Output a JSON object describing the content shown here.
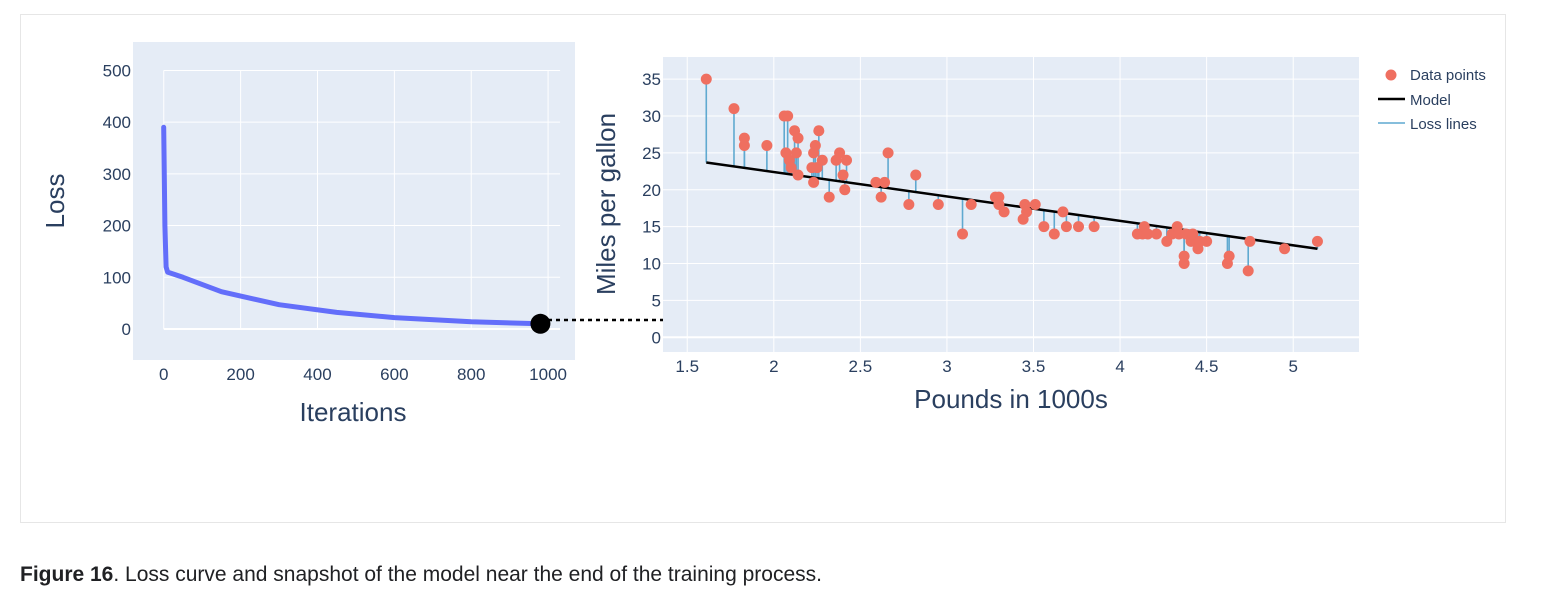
{
  "caption": {
    "label": "Figure 16",
    "text": ". Loss curve and snapshot of the model near the end of the training process."
  },
  "colors": {
    "plot_bg": "#e5ecf6",
    "grid": "#ffffff",
    "loss_line": "#636efa",
    "points": "#ef6f60",
    "model": "#000000",
    "loss_lines": "#5fa9d0",
    "axis_text": "#2a3f5f"
  },
  "chart_data": [
    {
      "type": "line",
      "xlabel": "Iterations",
      "ylabel": "Loss",
      "xlim": [
        -80,
        1070
      ],
      "ylim": [
        -60,
        555
      ],
      "x_ticks": [
        0,
        200,
        400,
        600,
        800,
        1000
      ],
      "y_ticks": [
        0,
        100,
        200,
        300,
        400,
        500
      ],
      "grid": true,
      "series": [
        {
          "x": [
            0,
            3,
            6,
            10,
            50,
            150,
            300,
            450,
            600,
            800,
            980
          ],
          "y": [
            390,
            200,
            120,
            110,
            100,
            72,
            47,
            32,
            22,
            14,
            10
          ]
        }
      ],
      "endpoint_marker": {
        "x": 980,
        "y": 10
      }
    },
    {
      "type": "scatter",
      "xlabel": "Pounds in 1000s",
      "ylabel": "Miles per gallon",
      "xlim": [
        1.36,
        5.38
      ],
      "ylim": [
        -2,
        38
      ],
      "x_ticks": [
        1.5,
        2,
        2.5,
        3,
        3.5,
        4,
        4.5,
        5
      ],
      "x_tick_labels": [
        "1.5",
        "2",
        "2.5",
        "3",
        "3.5",
        "4",
        "4.5",
        "5"
      ],
      "y_ticks": [
        0,
        5,
        10,
        15,
        20,
        25,
        30,
        35
      ],
      "grid": true,
      "legend": {
        "placement": "top-right",
        "items": [
          "Data points",
          "Model",
          "Loss lines"
        ]
      },
      "model_line": {
        "x": [
          1.61,
          5.14
        ],
        "y": [
          23.7,
          12.0
        ]
      },
      "points": {
        "x": [
          1.61,
          1.77,
          1.83,
          1.83,
          1.96,
          2.06,
          2.07,
          2.08,
          2.09,
          2.1,
          2.12,
          2.13,
          2.14,
          2.14,
          2.22,
          2.23,
          2.23,
          2.24,
          2.25,
          2.26,
          2.28,
          2.32,
          2.36,
          2.38,
          2.4,
          2.41,
          2.42,
          2.59,
          2.62,
          2.64,
          2.66,
          2.78,
          2.82,
          2.95,
          3.09,
          3.14,
          3.28,
          3.3,
          3.3,
          3.33,
          3.44,
          3.45,
          3.46,
          3.51,
          3.56,
          3.62,
          3.67,
          3.69,
          3.76,
          3.85,
          4.1,
          4.13,
          4.14,
          4.16,
          4.21,
          4.27,
          4.3,
          4.33,
          4.34,
          4.37,
          4.37,
          4.38,
          4.41,
          4.42,
          4.45,
          4.46,
          4.5,
          4.62,
          4.63,
          4.74,
          4.75,
          4.95,
          5.14
        ],
        "y": [
          35,
          31,
          26,
          27,
          26,
          30,
          25,
          30,
          24,
          23,
          28,
          25,
          27,
          22,
          23,
          21,
          25,
          26,
          23,
          28,
          24,
          19,
          24,
          25,
          22,
          20,
          24,
          21,
          19,
          21,
          25,
          18,
          22,
          18,
          14,
          18,
          19,
          18,
          19,
          17,
          16,
          18,
          17,
          18,
          15,
          14,
          17,
          15,
          15,
          15,
          14,
          14,
          15,
          14,
          14,
          13,
          14,
          15,
          14,
          10,
          11,
          14,
          13,
          14,
          12,
          13,
          13,
          10,
          11,
          9,
          13,
          12,
          13
        ]
      }
    }
  ]
}
